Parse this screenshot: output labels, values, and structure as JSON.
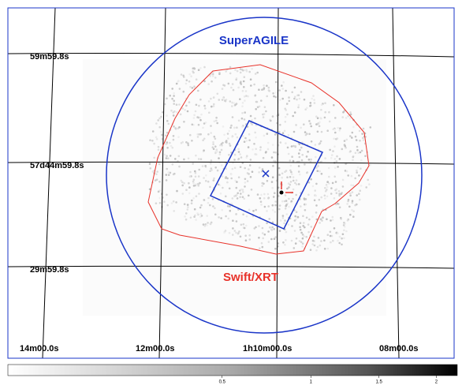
{
  "image": {
    "overlay_labels": {
      "superagile": "SuperAGILE",
      "xrt": "Swift/XRT"
    },
    "dec_labels": [
      "59m59.8s",
      "57d44m59.8s",
      "29m59.8s"
    ],
    "ra_labels": [
      "14m00.0s",
      "12m00.0s",
      "1h10m00.0s",
      "08m00.0s"
    ]
  },
  "colorbar": {
    "scale": "sqrt",
    "range": [
      0,
      2.2
    ],
    "ticks": [
      0.5,
      1,
      1.5,
      2
    ]
  }
}
